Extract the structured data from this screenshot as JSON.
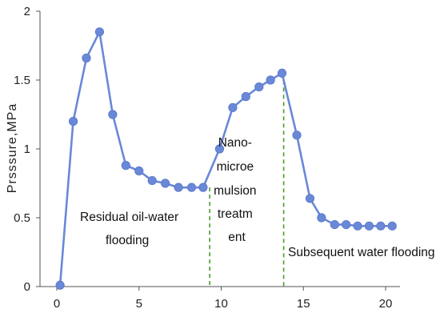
{
  "chart_data": {
    "type": "line",
    "title": "",
    "xlabel": "",
    "ylabel": "Prsssure,MPa",
    "xlim": [
      0,
      21
    ],
    "ylim": [
      0,
      2
    ],
    "x_ticks": [
      0,
      5,
      10,
      15,
      20
    ],
    "y_ticks": [
      0,
      0.5,
      1,
      1.5,
      2
    ],
    "y_tick_labels": [
      "0",
      "0.5",
      "1",
      "1.5",
      "2"
    ],
    "grid": false,
    "legend": "none",
    "series": [
      {
        "color": "#6a88d8",
        "points": [
          [
            0.2,
            0.01
          ],
          [
            1.0,
            1.2
          ],
          [
            1.8,
            1.66
          ],
          [
            2.6,
            1.85
          ],
          [
            3.4,
            1.25
          ],
          [
            4.2,
            0.88
          ],
          [
            5.0,
            0.84
          ],
          [
            5.8,
            0.77
          ],
          [
            6.6,
            0.75
          ],
          [
            7.4,
            0.72
          ],
          [
            8.2,
            0.72
          ],
          [
            8.9,
            0.72
          ],
          [
            9.9,
            1.0
          ],
          [
            10.7,
            1.3
          ],
          [
            11.5,
            1.38
          ],
          [
            12.3,
            1.45
          ],
          [
            13.0,
            1.5
          ],
          [
            13.7,
            1.55
          ],
          [
            14.6,
            1.1
          ],
          [
            15.4,
            0.64
          ],
          [
            16.1,
            0.5
          ],
          [
            16.9,
            0.45
          ],
          [
            17.6,
            0.45
          ],
          [
            18.3,
            0.44
          ],
          [
            19.0,
            0.44
          ],
          [
            19.7,
            0.44
          ],
          [
            20.4,
            0.44
          ]
        ]
      }
    ],
    "dividers": [
      {
        "x": 9.3,
        "color": "#4a9a2a",
        "style": "dashed"
      },
      {
        "x": 13.8,
        "color": "#4a9a2a",
        "style": "dashed"
      }
    ],
    "annotations": [
      {
        "lines": [
          "Residual oil-water",
          "flooding"
        ]
      },
      {
        "lines": [
          "Nano-",
          "microe",
          "mulsion",
          "treatm",
          "ent"
        ]
      },
      {
        "lines": [
          "Subsequent water flooding"
        ]
      }
    ]
  }
}
